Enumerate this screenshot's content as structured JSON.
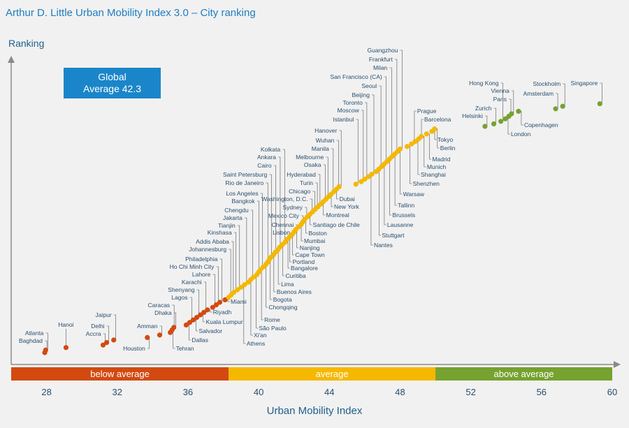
{
  "title": "Arthur D. Little Urban Mobility Index 3.0 – City ranking",
  "ylabel": "Ranking",
  "xlabel": "Urban Mobility Index",
  "badge": {
    "line1": "Global",
    "line2": "Average 42.3"
  },
  "colors": {
    "below": "#d24a10",
    "average": "#f5b800",
    "above": "#76a22f",
    "text": "#2b4f6e",
    "accent": "#1f7dc0"
  },
  "chart_data": {
    "type": "scatter",
    "title": "Arthur D. Little Urban Mobility Index 3.0 – City ranking",
    "xlabel": "Urban Mobility Index",
    "ylabel": "Ranking",
    "xlim": [
      26,
      60
    ],
    "xticks": [
      28,
      32,
      36,
      40,
      44,
      48,
      52,
      56,
      60
    ],
    "global_average": 42.3,
    "bands": [
      {
        "label": "below average",
        "from": 26,
        "to": 38.3,
        "color": "#d24a10"
      },
      {
        "label": "average",
        "from": 38.3,
        "to": 50,
        "color": "#f5b800"
      },
      {
        "label": "above average",
        "from": 50,
        "to": 60,
        "color": "#76a22f"
      }
    ],
    "cities": [
      {
        "name": "Baghdad",
        "x": 27.9,
        "rank": 1
      },
      {
        "name": "Atlanta",
        "x": 27.95,
        "rank": 2
      },
      {
        "name": "Hanoi",
        "x": 29.1,
        "rank": 3
      },
      {
        "name": "Accra",
        "x": 31.2,
        "rank": 4
      },
      {
        "name": "Delhi",
        "x": 31.4,
        "rank": 5
      },
      {
        "name": "Jaipur",
        "x": 31.8,
        "rank": 6
      },
      {
        "name": "Houston",
        "x": 33.7,
        "rank": 7
      },
      {
        "name": "Amman",
        "x": 34.4,
        "rank": 8
      },
      {
        "name": "Tehran",
        "x": 35.0,
        "rank": 9
      },
      {
        "name": "Caracas",
        "x": 35.1,
        "rank": 10
      },
      {
        "name": "Dhaka",
        "x": 35.2,
        "rank": 11
      },
      {
        "name": "Dallas",
        "x": 35.9,
        "rank": 12
      },
      {
        "name": "Lagos",
        "x": 36.1,
        "rank": 13
      },
      {
        "name": "Salvador",
        "x": 36.3,
        "rank": 14
      },
      {
        "name": "Shenyang",
        "x": 36.5,
        "rank": 15
      },
      {
        "name": "Kuala Lumpur",
        "x": 36.7,
        "rank": 16
      },
      {
        "name": "Karachi",
        "x": 36.9,
        "rank": 17
      },
      {
        "name": "Riyadh",
        "x": 37.1,
        "rank": 18
      },
      {
        "name": "Lahore",
        "x": 37.4,
        "rank": 19
      },
      {
        "name": "Ho Chi Minh City",
        "x": 37.6,
        "rank": 20
      },
      {
        "name": "Philadelphia",
        "x": 37.8,
        "rank": 21
      },
      {
        "name": "Miami",
        "x": 38.1,
        "rank": 22
      },
      {
        "name": "Johannesburg",
        "x": 38.3,
        "rank": 23
      },
      {
        "name": "Addis Ababa",
        "x": 38.45,
        "rank": 24
      },
      {
        "name": "Kinshasa",
        "x": 38.6,
        "rank": 25
      },
      {
        "name": "Tianjin",
        "x": 38.8,
        "rank": 26
      },
      {
        "name": "Athens",
        "x": 39.0,
        "rank": 27
      },
      {
        "name": "Jakarta",
        "x": 39.2,
        "rank": 28
      },
      {
        "name": "Xi'an",
        "x": 39.4,
        "rank": 29
      },
      {
        "name": "Chengdu",
        "x": 39.55,
        "rank": 30
      },
      {
        "name": "São Paulo",
        "x": 39.7,
        "rank": 31
      },
      {
        "name": "Bangkok",
        "x": 39.9,
        "rank": 32
      },
      {
        "name": "Rome",
        "x": 40.0,
        "rank": 33
      },
      {
        "name": "Los Angeles",
        "x": 40.1,
        "rank": 34
      },
      {
        "name": "Chongqing",
        "x": 40.25,
        "rank": 35
      },
      {
        "name": "Rio de Janeiro",
        "x": 40.4,
        "rank": 36
      },
      {
        "name": "Bogota",
        "x": 40.5,
        "rank": 37
      },
      {
        "name": "Saint Petersburg",
        "x": 40.6,
        "rank": 38
      },
      {
        "name": "Buenos Aires",
        "x": 40.7,
        "rank": 39
      },
      {
        "name": "Cairo",
        "x": 40.85,
        "rank": 40
      },
      {
        "name": "Lima",
        "x": 40.95,
        "rank": 41
      },
      {
        "name": "Ankara",
        "x": 41.1,
        "rank": 42
      },
      {
        "name": "Curitiba",
        "x": 41.2,
        "rank": 43
      },
      {
        "name": "Kolkata",
        "x": 41.35,
        "rank": 44
      },
      {
        "name": "Bangalore",
        "x": 41.5,
        "rank": 45
      },
      {
        "name": "Portland",
        "x": 41.6,
        "rank": 46
      },
      {
        "name": "Cape Town",
        "x": 41.75,
        "rank": 47
      },
      {
        "name": "Lisbon",
        "x": 41.9,
        "rank": 48
      },
      {
        "name": "Nanjing",
        "x": 42.0,
        "rank": 49
      },
      {
        "name": "Chennai",
        "x": 42.1,
        "rank": 50
      },
      {
        "name": "Mumbai",
        "x": 42.25,
        "rank": 51
      },
      {
        "name": "Mexico City",
        "x": 42.4,
        "rank": 52
      },
      {
        "name": "Boston",
        "x": 42.5,
        "rank": 53
      },
      {
        "name": "Sydney",
        "x": 42.6,
        "rank": 54
      },
      {
        "name": "Santiago de Chile",
        "x": 42.75,
        "rank": 55
      },
      {
        "name": "Washington, D.C.",
        "x": 42.9,
        "rank": 56
      },
      {
        "name": "Chicago",
        "x": 43.05,
        "rank": 57
      },
      {
        "name": "Turin",
        "x": 43.2,
        "rank": 58
      },
      {
        "name": "Hyderabad",
        "x": 43.35,
        "rank": 59
      },
      {
        "name": "Montreal",
        "x": 43.5,
        "rank": 60
      },
      {
        "name": "Osaka",
        "x": 43.65,
        "rank": 61
      },
      {
        "name": "Melbourne",
        "x": 43.8,
        "rank": 62
      },
      {
        "name": "New York",
        "x": 43.95,
        "rank": 63
      },
      {
        "name": "Manila",
        "x": 44.1,
        "rank": 64
      },
      {
        "name": "Dubai",
        "x": 44.25,
        "rank": 65
      },
      {
        "name": "Wuhan",
        "x": 44.4,
        "rank": 66
      },
      {
        "name": "Hanover",
        "x": 44.55,
        "rank": 67
      },
      {
        "name": "Istanbul",
        "x": 45.5,
        "rank": 68
      },
      {
        "name": "Moscow",
        "x": 45.8,
        "rank": 69
      },
      {
        "name": "Toronto",
        "x": 46.0,
        "rank": 70
      },
      {
        "name": "Nantes",
        "x": 46.2,
        "rank": 71
      },
      {
        "name": "Beijing",
        "x": 46.4,
        "rank": 72
      },
      {
        "name": "Stuttgart",
        "x": 46.65,
        "rank": 73
      },
      {
        "name": "Seoul",
        "x": 46.8,
        "rank": 74
      },
      {
        "name": "Lausanne",
        "x": 46.95,
        "rank": 75
      },
      {
        "name": "San Francisco (CA)",
        "x": 47.1,
        "rank": 76
      },
      {
        "name": "Brussels",
        "x": 47.25,
        "rank": 77
      },
      {
        "name": "Milan",
        "x": 47.4,
        "rank": 78
      },
      {
        "name": "Tallinn",
        "x": 47.55,
        "rank": 79
      },
      {
        "name": "Frankfurt",
        "x": 47.7,
        "rank": 80
      },
      {
        "name": "Warsaw",
        "x": 47.85,
        "rank": 81
      },
      {
        "name": "Guangzhou",
        "x": 48.0,
        "rank": 82
      },
      {
        "name": "Shenzhen",
        "x": 48.4,
        "rank": 83
      },
      {
        "name": "Prague",
        "x": 48.65,
        "rank": 84
      },
      {
        "name": "Shanghai",
        "x": 48.85,
        "rank": 85
      },
      {
        "name": "Barcelona",
        "x": 49.05,
        "rank": 86
      },
      {
        "name": "Munich",
        "x": 49.2,
        "rank": 87
      },
      {
        "name": "Madrid",
        "x": 49.5,
        "rank": 88
      },
      {
        "name": "Tokyo",
        "x": 49.8,
        "rank": 89
      },
      {
        "name": "Berlin",
        "x": 49.95,
        "rank": 90
      },
      {
        "name": "Helsinki",
        "x": 52.8,
        "rank": 91
      },
      {
        "name": "Zurich",
        "x": 53.3,
        "rank": 92
      },
      {
        "name": "Hong Kong",
        "x": 53.7,
        "rank": 93
      },
      {
        "name": "London",
        "x": 53.95,
        "rank": 94
      },
      {
        "name": "Paris",
        "x": 54.15,
        "rank": 95
      },
      {
        "name": "Vienna",
        "x": 54.3,
        "rank": 96
      },
      {
        "name": "Copenhagen",
        "x": 54.7,
        "rank": 97
      },
      {
        "name": "Amsterdam",
        "x": 56.8,
        "rank": 98
      },
      {
        "name": "Stockholm",
        "x": 57.2,
        "rank": 99
      },
      {
        "name": "Singapore",
        "x": 59.3,
        "rank": 100
      }
    ]
  }
}
